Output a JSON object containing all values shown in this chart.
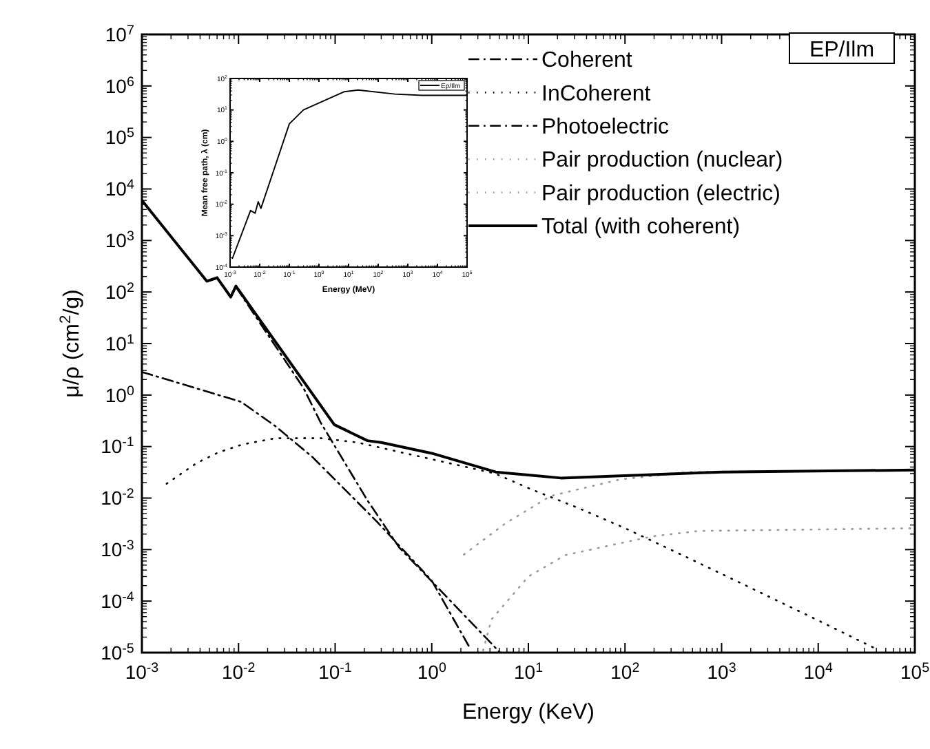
{
  "chart_data": [
    {
      "type": "line",
      "xlabel": "Energy (KeV)",
      "ylabel": "μ/ρ (cm$^{2}$/g)",
      "log": "xy",
      "grid": false,
      "legend": "top right",
      "xlim": [
        0.001,
        100000
      ],
      "ylim": [
        1e-05,
        10000000
      ],
      "xticks": [
        {
          "value": 0.001,
          "label": "10$^{-3}$"
        },
        {
          "value": 0.01,
          "label": "10$^{-2}$"
        },
        {
          "value": 0.1,
          "label": "10$^{-1}$"
        },
        {
          "value": 1,
          "label": "10$^{0}$"
        },
        {
          "value": 10,
          "label": "10$^{1}$"
        },
        {
          "value": 100,
          "label": "10$^{2}$"
        },
        {
          "value": 1000,
          "label": "10$^{3}$"
        },
        {
          "value": 10000,
          "label": "10$^{4}$"
        },
        {
          "value": 100000,
          "label": "10$^{5}$"
        }
      ],
      "yticks": [
        {
          "value": 1e-05,
          "label": "10$^{-5}$"
        },
        {
          "value": 0.0001,
          "label": "10$^{-4}$"
        },
        {
          "value": 0.001,
          "label": "10$^{-3}$"
        },
        {
          "value": 0.01,
          "label": "10$^{-2}$"
        },
        {
          "value": 0.1,
          "label": "10$^{-1}$"
        },
        {
          "value": 1,
          "label": "10$^{0}$"
        },
        {
          "value": 10,
          "label": "10$^{1}$"
        },
        {
          "value": 100,
          "label": "10$^{2}$"
        },
        {
          "value": 1000,
          "label": "10$^{3}$"
        },
        {
          "value": 10000,
          "label": "10$^{4}$"
        },
        {
          "value": 100000,
          "label": "10$^{5}$"
        },
        {
          "value": 1000000,
          "label": "10$^{6}$"
        },
        {
          "value": 10000000,
          "label": "10$^{7}$"
        }
      ],
      "annotations": [
        "EP/Ilm"
      ],
      "series": [
        {
          "name": "Coherent",
          "color": "#000000",
          "line_style": "dashed",
          "x": [
            0.001,
            0.0106,
            0.024,
            0.058,
            0.27,
            1,
            2.5
          ],
          "values": [
            2.8,
            0.74,
            0.25,
            0.063,
            0.0035,
            0.00025,
            1.2e-05
          ]
        },
        {
          "name": "InCoherent",
          "color": "#000000",
          "line_style": "dotted",
          "x": [
            0.0018,
            0.0037,
            0.0062,
            0.011,
            0.024,
            0.071,
            0.17,
            4.5,
            11,
            33,
            98,
            430,
            1530,
            9300,
            41000
          ],
          "values": [
            0.019,
            0.048,
            0.077,
            0.11,
            0.145,
            0.145,
            0.12,
            0.03,
            0.0145,
            0.0064,
            0.00265,
            0.00072,
            0.00023,
            4.5e-05,
            1.15e-05
          ]
        },
        {
          "name": "Photoelectric",
          "color": "#000000",
          "line_style": "dashed",
          "x": [
            0.001,
            0.0047,
            0.006,
            0.0083,
            0.0094,
            0.047,
            0.071,
            0.216,
            0.46,
            5.1
          ],
          "values": [
            6000,
            160,
            185,
            78,
            125,
            1.37,
            0.29,
            0.009,
            0.0011,
            1e-05
          ]
        },
        {
          "name": "Pair production (nuclear)",
          "color": "#999999",
          "line_style": "dotted",
          "x": [
            2.15,
            5.75,
            17,
            89,
            460,
            100000
          ],
          "values": [
            0.0008,
            0.0032,
            0.011,
            0.023,
            0.032,
            0.035
          ]
        },
        {
          "name": "Pair production (electric)",
          "color": "#999999",
          "line_style": "dotted",
          "x": [
            3.4,
            4.15,
            10,
            24,
            190,
            580,
            100000
          ],
          "values": [
            1.1e-05,
            4.4e-05,
            0.0003,
            0.00078,
            0.0018,
            0.0023,
            0.0026
          ]
        },
        {
          "name": "Total (with coherent)",
          "color": "#000000",
          "line_style": "solid",
          "x": [
            0.001,
            0.0047,
            0.006,
            0.0083,
            0.0094,
            0.098,
            0.216,
            0.3,
            1,
            4.6,
            10,
            21.7,
            1000,
            100000
          ],
          "values": [
            6000,
            162,
            190,
            80,
            130,
            0.266,
            0.13,
            0.12,
            0.074,
            0.032,
            0.028,
            0.0245,
            0.032,
            0.035
          ]
        }
      ]
    },
    {
      "type": "line",
      "xlabel": "Energy (MeV)",
      "ylabel": "Mean free path, λ (cm)",
      "log": "xy",
      "grid": false,
      "legend": "top right",
      "xlim": [
        0.001,
        100000
      ],
      "ylim": [
        0.0001,
        100
      ],
      "xticks": [
        {
          "value": 0.001,
          "label": "10$^{-3}$"
        },
        {
          "value": 0.01,
          "label": "10$^{-2}$"
        },
        {
          "value": 0.1,
          "label": "10$^{-1}$"
        },
        {
          "value": 1,
          "label": "10$^{0}$"
        },
        {
          "value": 10,
          "label": "10$^{1}$"
        },
        {
          "value": 100,
          "label": "10$^{2}$"
        },
        {
          "value": 1000,
          "label": "10$^{3}$"
        },
        {
          "value": 10000,
          "label": "10$^{4}$"
        },
        {
          "value": 100000,
          "label": "10$^{5}$"
        }
      ],
      "yticks": [
        {
          "value": 0.0001,
          "label": "10$^{-4}$"
        },
        {
          "value": 0.001,
          "label": "10$^{-3}$"
        },
        {
          "value": 0.01,
          "label": "10$^{-2}$"
        },
        {
          "value": 0.1,
          "label": "10$^{-1}$"
        },
        {
          "value": 1,
          "label": "10$^{0}$"
        },
        {
          "value": 10,
          "label": "10$^{1}$"
        },
        {
          "value": 100,
          "label": "10$^{2}$"
        }
      ],
      "series": [
        {
          "name": "Ep/Ilm",
          "color": "#000000",
          "line_style": "solid",
          "x": [
            0.0012,
            0.0049,
            0.007,
            0.0089,
            0.011,
            0.1,
            0.3,
            7.2,
            21,
            360,
            3000,
            100000
          ],
          "values": [
            0.00019,
            0.0063,
            0.0052,
            0.012,
            0.0074,
            3.6,
            10,
            38,
            43,
            32,
            29,
            29
          ]
        }
      ]
    }
  ]
}
